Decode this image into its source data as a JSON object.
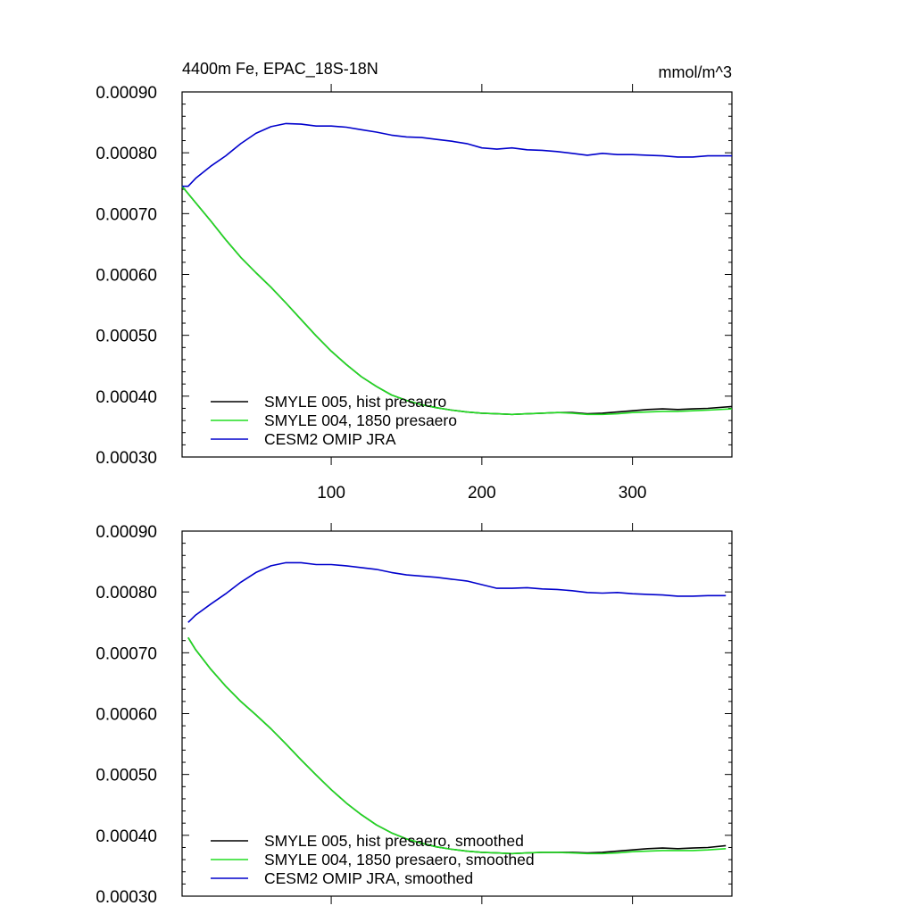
{
  "chart_data": [
    {
      "type": "line",
      "title_left": "4400m Fe, EPAC_18S-18N",
      "title_right": "mmol/m^3",
      "xlim": [
        1,
        366
      ],
      "ylim": [
        0.0003,
        0.0009
      ],
      "yticks": [
        "0.00030",
        "0.00040",
        "0.00050",
        "0.00060",
        "0.00070",
        "0.00080",
        "0.00090"
      ],
      "xticks": [
        100,
        200,
        300
      ],
      "x_tick_labels": [
        "100",
        "200",
        "300"
      ],
      "series": [
        {
          "name": "SMYLE 005, hist presaero",
          "color": "#000000",
          "x": [
            1,
            10,
            20,
            30,
            40,
            50,
            60,
            70,
            80,
            90,
            100,
            110,
            120,
            130,
            140,
            150,
            160,
            170,
            180,
            190,
            200,
            210,
            220,
            230,
            240,
            250,
            260,
            270,
            280,
            290,
            300,
            310,
            320,
            330,
            340,
            350,
            366
          ],
          "y": [
            0.000745,
            0.000718,
            0.000688,
            0.000657,
            0.000628,
            0.000603,
            0.000579,
            0.000553,
            0.000526,
            0.000499,
            0.000474,
            0.000452,
            0.000432,
            0.000416,
            0.000402,
            0.000393,
            0.000386,
            0.000381,
            0.000377,
            0.000374,
            0.000372,
            0.000371,
            0.00037,
            0.000371,
            0.000372,
            0.000373,
            0.000373,
            0.000371,
            0.000372,
            0.000374,
            0.000376,
            0.000378,
            0.000379,
            0.000378,
            0.000379,
            0.00038,
            0.000383
          ]
        },
        {
          "name": "SMYLE 004, 1850 presaero",
          "color": "#22dd22",
          "x": [
            1,
            10,
            20,
            30,
            40,
            50,
            60,
            70,
            80,
            90,
            100,
            110,
            120,
            130,
            140,
            150,
            160,
            170,
            180,
            190,
            200,
            210,
            220,
            230,
            240,
            250,
            260,
            270,
            280,
            290,
            300,
            310,
            320,
            330,
            340,
            350,
            366
          ],
          "y": [
            0.000745,
            0.000718,
            0.000688,
            0.000657,
            0.000628,
            0.000603,
            0.000579,
            0.000553,
            0.000526,
            0.000499,
            0.000474,
            0.000452,
            0.000432,
            0.000416,
            0.000402,
            0.000393,
            0.000386,
            0.000381,
            0.000377,
            0.000374,
            0.000372,
            0.000371,
            0.00037,
            0.000371,
            0.000372,
            0.000373,
            0.000372,
            0.00037,
            0.00037,
            0.000371,
            0.000373,
            0.000374,
            0.000375,
            0.000375,
            0.000376,
            0.000377,
            0.000379
          ]
        },
        {
          "name": "CESM2 OMIP JRA",
          "color": "#0000cc",
          "x": [
            1,
            5,
            10,
            20,
            30,
            40,
            50,
            60,
            70,
            80,
            90,
            100,
            110,
            120,
            130,
            140,
            150,
            160,
            170,
            180,
            190,
            200,
            210,
            220,
            230,
            240,
            250,
            260,
            270,
            280,
            290,
            300,
            310,
            320,
            330,
            340,
            350,
            366
          ],
          "y": [
            0.000745,
            0.000745,
            0.000758,
            0.000778,
            0.000795,
            0.000815,
            0.000832,
            0.000843,
            0.000848,
            0.000847,
            0.000844,
            0.000844,
            0.000842,
            0.000838,
            0.000834,
            0.000829,
            0.000826,
            0.000825,
            0.000822,
            0.000819,
            0.000815,
            0.000808,
            0.000806,
            0.000808,
            0.000805,
            0.000804,
            0.000802,
            0.000799,
            0.000796,
            0.000799,
            0.000797,
            0.000797,
            0.000796,
            0.000795,
            0.000793,
            0.000793,
            0.000795,
            0.000795
          ]
        }
      ]
    },
    {
      "type": "line",
      "xlim": [
        1,
        366
      ],
      "ylim": [
        0.0003,
        0.0009
      ],
      "yticks": [
        "0.00030",
        "0.00040",
        "0.00050",
        "0.00060",
        "0.00070",
        "0.00080",
        "0.00090"
      ],
      "xticks": [
        100,
        200,
        300
      ],
      "series": [
        {
          "name": "SMYLE 005, hist presaero, smoothed",
          "color": "#000000",
          "x": [
            5,
            10,
            20,
            30,
            40,
            50,
            60,
            70,
            80,
            90,
            100,
            110,
            120,
            130,
            140,
            150,
            160,
            170,
            180,
            190,
            200,
            210,
            220,
            230,
            240,
            250,
            260,
            270,
            280,
            290,
            300,
            310,
            320,
            330,
            340,
            350,
            362
          ],
          "y": [
            0.000725,
            0.000705,
            0.000673,
            0.000645,
            0.00062,
            0.000598,
            0.000575,
            0.00055,
            0.000524,
            0.000499,
            0.000475,
            0.000453,
            0.000434,
            0.000417,
            0.000404,
            0.000394,
            0.000387,
            0.000381,
            0.000377,
            0.000374,
            0.000372,
            0.000371,
            0.00037,
            0.000371,
            0.000372,
            0.000372,
            0.000372,
            0.000371,
            0.000372,
            0.000374,
            0.000376,
            0.000378,
            0.000379,
            0.000378,
            0.000379,
            0.00038,
            0.000383
          ]
        },
        {
          "name": "SMYLE 004, 1850 presaero, smoothed",
          "color": "#22dd22",
          "x": [
            5,
            10,
            20,
            30,
            40,
            50,
            60,
            70,
            80,
            90,
            100,
            110,
            120,
            130,
            140,
            150,
            160,
            170,
            180,
            190,
            200,
            210,
            220,
            230,
            240,
            250,
            260,
            270,
            280,
            290,
            300,
            310,
            320,
            330,
            340,
            350,
            362
          ],
          "y": [
            0.000725,
            0.000705,
            0.000673,
            0.000645,
            0.00062,
            0.000598,
            0.000575,
            0.00055,
            0.000524,
            0.000499,
            0.000475,
            0.000453,
            0.000434,
            0.000417,
            0.000404,
            0.000394,
            0.000387,
            0.000381,
            0.000377,
            0.000374,
            0.000372,
            0.000371,
            0.00037,
            0.000371,
            0.000372,
            0.000372,
            0.000371,
            0.00037,
            0.00037,
            0.000371,
            0.000373,
            0.000374,
            0.000375,
            0.000375,
            0.000375,
            0.000376,
            0.000378
          ]
        },
        {
          "name": "CESM2 OMIP JRA, smoothed",
          "color": "#0000cc",
          "x": [
            5,
            10,
            20,
            30,
            40,
            50,
            60,
            70,
            80,
            90,
            100,
            110,
            120,
            130,
            140,
            150,
            160,
            170,
            180,
            190,
            200,
            210,
            220,
            230,
            240,
            250,
            260,
            270,
            280,
            290,
            300,
            310,
            320,
            330,
            340,
            350,
            362
          ],
          "y": [
            0.00075,
            0.000762,
            0.00078,
            0.000797,
            0.000816,
            0.000832,
            0.000843,
            0.000848,
            0.000848,
            0.000845,
            0.000845,
            0.000843,
            0.00084,
            0.000837,
            0.000832,
            0.000828,
            0.000826,
            0.000824,
            0.000821,
            0.000818,
            0.000812,
            0.000806,
            0.000806,
            0.000807,
            0.000805,
            0.000804,
            0.000802,
            0.000799,
            0.000798,
            0.000799,
            0.000797,
            0.000796,
            0.000795,
            0.000793,
            0.000793,
            0.000794,
            0.000794
          ]
        }
      ]
    }
  ]
}
